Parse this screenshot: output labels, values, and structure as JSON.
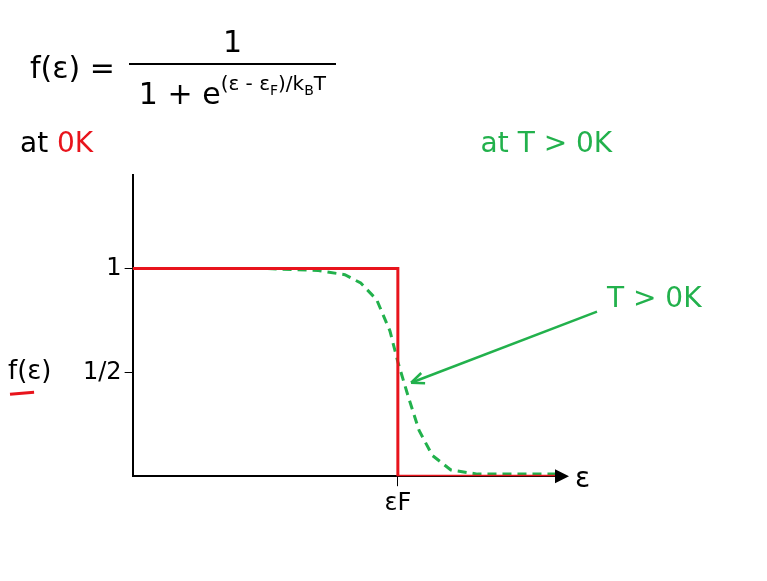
{
  "chart_data": {
    "type": "line",
    "formula": {
      "lhs": "f(ε) =",
      "numerator": "1",
      "denominator": "1 + e",
      "exponent": [
        "(ε - ε",
        {
          "sub": "F"
        },
        ")/k",
        {
          "sub": "B"
        },
        "T"
      ]
    },
    "title_left": [
      {
        "text": "at ",
        "color": "#000000"
      },
      {
        "text": "0K",
        "color": "#e8141c"
      }
    ],
    "title_right": {
      "text": "at T > 0K",
      "color": "#22b14c"
    },
    "x_label": "ε",
    "y_label": "f(ε)",
    "xlim": [
      0,
      1.6
    ],
    "ylim": [
      0,
      1.45
    ],
    "xticks": [
      {
        "value": 1,
        "label": "εF"
      }
    ],
    "yticks": [
      {
        "value": 0.5,
        "label": "1/2"
      },
      1
    ],
    "grid": false,
    "series": [
      {
        "color": "#e8141c",
        "line_style": "solid",
        "x": [
          0,
          1,
          1,
          1.6
        ],
        "values": [
          1,
          1,
          0,
          0
        ]
      },
      {
        "color": "#22b14c",
        "line_style": "dashed",
        "x": [
          0,
          0.5,
          0.7,
          0.8,
          0.86,
          0.92,
          0.97,
          1.0,
          1.04,
          1.08,
          1.13,
          1.2,
          1.3,
          1.6
        ],
        "values": [
          1,
          1,
          0.99,
          0.97,
          0.93,
          0.85,
          0.7,
          0.55,
          0.38,
          0.22,
          0.1,
          0.03,
          0.01,
          0.01
        ]
      }
    ],
    "annotations": [
      {
        "text": "T > 0K",
        "color": "#22b14c"
      }
    ]
  }
}
